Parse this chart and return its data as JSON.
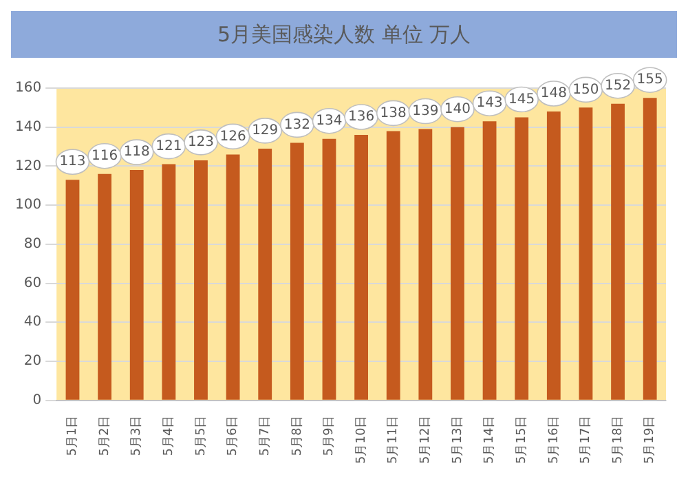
{
  "chart_data": {
    "type": "bar",
    "title": "5月美国感染人数 单位 万人",
    "categories": [
      "5月1日",
      "5月2日",
      "5月3日",
      "5月4日",
      "5月5日",
      "5月6日",
      "5月7日",
      "5月8日",
      "5月9日",
      "5月10日",
      "5月11日",
      "5月12日",
      "5月13日",
      "5月14日",
      "5月15日",
      "5月16日",
      "5月17日",
      "5月18日",
      "5月19日"
    ],
    "values": [
      113,
      116,
      118,
      121,
      123,
      126,
      129,
      132,
      134,
      136,
      138,
      139,
      140,
      143,
      145,
      148,
      150,
      152,
      155
    ],
    "color": "#c55a1e",
    "ylim": [
      0,
      160
    ],
    "yticks": [
      0,
      20,
      40,
      60,
      80,
      100,
      120,
      140,
      160
    ],
    "grid": "y",
    "data_labels": true,
    "legend": false
  }
}
